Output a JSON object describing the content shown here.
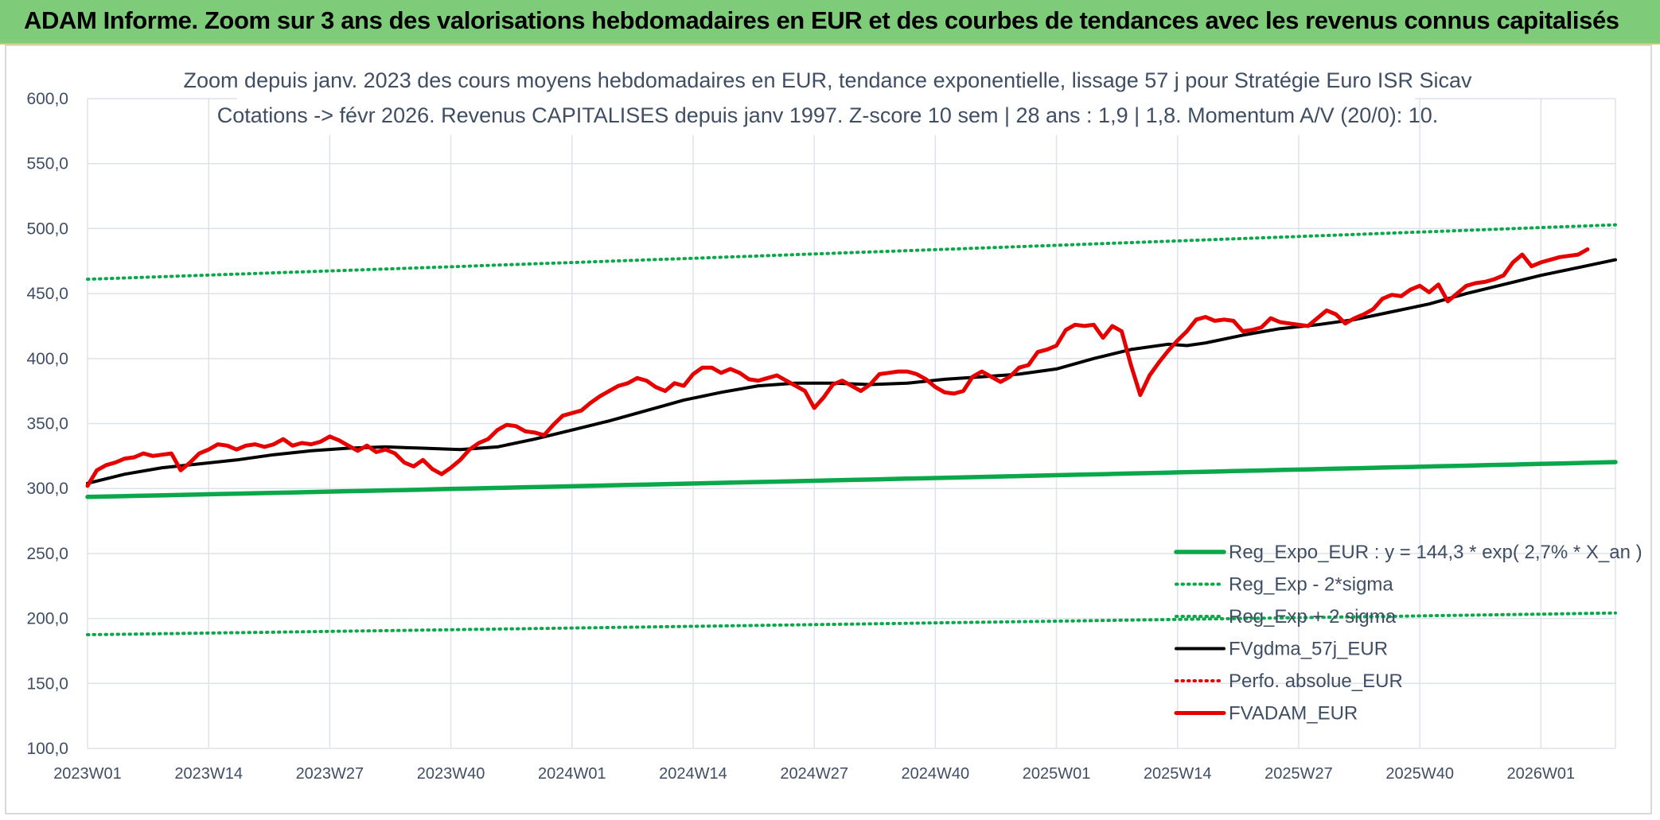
{
  "banner": {
    "title": "ADAM Informe. Zoom sur 3 ans des valorisations hebdomadaires en EUR et des courbes de tendances avec les revenus connus capitalisés"
  },
  "colors": {
    "banner_bg": "#7ecb7a",
    "regression": "#0aa84a",
    "fv_avg": "#000000",
    "fv_adam": "#e60000",
    "perf_abs": "#e60000",
    "grid": "#dde3ea",
    "text": "#404e64"
  },
  "chart_data": {
    "type": "line",
    "title": "Zoom depuis janv. 2023 des cours moyens hebdomadaires en EUR, tendance exponentielle, lissage 57 j pour Stratégie Euro ISR Sicav",
    "subtitle": "Cotations -> févr 2026. Revenus CAPITALISES depuis janv 1997. Z-score 10 sem | 28 ans : 1,9 | 1,8. Momentum A/V (20/0): 10.",
    "xlabel": "",
    "ylabel": "",
    "ylim": [
      100,
      600
    ],
    "y_ticks": [
      "100,0",
      "150,0",
      "200,0",
      "250,0",
      "300,0",
      "350,0",
      "400,0",
      "450,0",
      "500,0",
      "550,0",
      "600,0"
    ],
    "x_ticks": [
      "2023W01",
      "2023W14",
      "2023W27",
      "2023W40",
      "2024W01",
      "2024W14",
      "2024W27",
      "2024W40",
      "2025W01",
      "2025W14",
      "2025W27",
      "2025W40",
      "2026W01"
    ],
    "x_tick_week_index": [
      0,
      13,
      26,
      39,
      52,
      65,
      78,
      91,
      104,
      117,
      130,
      143,
      156
    ],
    "x_max_week_index": 164,
    "grid": true,
    "legend_position": "bottom-right",
    "series": [
      {
        "name": "Reg_Expo_EUR : y = 144,3 * exp( 2,7% *  X_an )",
        "style": "solid-thick",
        "color": "#0aa84a",
        "start_end": [
          293.5,
          320.3
        ]
      },
      {
        "name": "Reg_Exp - 2*sigma",
        "style": "dotted",
        "color": "#0aa84a",
        "start_end": [
          187.5,
          204.2
        ]
      },
      {
        "name": "Reg_Exp + 2 sigma",
        "style": "dotted",
        "color": "#0aa84a",
        "start_end": [
          461.0,
          502.9
        ]
      },
      {
        "name": "FVgdma_57j_EUR",
        "style": "solid",
        "color": "#000000",
        "points": [
          [
            0,
            304
          ],
          [
            4,
            311
          ],
          [
            8,
            316
          ],
          [
            12,
            319
          ],
          [
            16,
            322
          ],
          [
            20,
            326
          ],
          [
            24,
            329
          ],
          [
            28,
            331
          ],
          [
            32,
            332
          ],
          [
            36,
            331
          ],
          [
            40,
            330
          ],
          [
            44,
            332
          ],
          [
            48,
            338
          ],
          [
            52,
            345
          ],
          [
            56,
            352
          ],
          [
            60,
            360
          ],
          [
            64,
            368
          ],
          [
            68,
            374
          ],
          [
            72,
            379
          ],
          [
            76,
            381
          ],
          [
            80,
            381
          ],
          [
            84,
            380
          ],
          [
            88,
            381
          ],
          [
            92,
            384
          ],
          [
            96,
            386
          ],
          [
            100,
            388
          ],
          [
            104,
            392
          ],
          [
            108,
            400
          ],
          [
            112,
            407
          ],
          [
            116,
            411
          ],
          [
            118,
            410
          ],
          [
            120,
            412
          ],
          [
            124,
            418
          ],
          [
            128,
            423
          ],
          [
            132,
            426
          ],
          [
            136,
            430
          ],
          [
            140,
            436
          ],
          [
            144,
            442
          ],
          [
            148,
            450
          ],
          [
            152,
            457
          ],
          [
            156,
            464
          ],
          [
            160,
            470
          ],
          [
            164,
            476
          ]
        ]
      },
      {
        "name": "Perfo. absolue_EUR",
        "style": "dotted",
        "color": "#e60000",
        "points": []
      },
      {
        "name": "FVADAM_EUR",
        "style": "solid-thick",
        "color": "#e60000",
        "points": [
          [
            0,
            302
          ],
          [
            1,
            314
          ],
          [
            2,
            318
          ],
          [
            3,
            320
          ],
          [
            4,
            323
          ],
          [
            5,
            324
          ],
          [
            6,
            327
          ],
          [
            7,
            325
          ],
          [
            8,
            326
          ],
          [
            9,
            327
          ],
          [
            10,
            314
          ],
          [
            11,
            320
          ],
          [
            12,
            327
          ],
          [
            13,
            330
          ],
          [
            14,
            334
          ],
          [
            15,
            333
          ],
          [
            16,
            330
          ],
          [
            17,
            333
          ],
          [
            18,
            334
          ],
          [
            19,
            332
          ],
          [
            20,
            334
          ],
          [
            21,
            338
          ],
          [
            22,
            333
          ],
          [
            23,
            335
          ],
          [
            24,
            334
          ],
          [
            25,
            336
          ],
          [
            26,
            340
          ],
          [
            27,
            337
          ],
          [
            28,
            333
          ],
          [
            29,
            329
          ],
          [
            30,
            333
          ],
          [
            31,
            328
          ],
          [
            32,
            330
          ],
          [
            33,
            327
          ],
          [
            34,
            320
          ],
          [
            35,
            317
          ],
          [
            36,
            322
          ],
          [
            37,
            315
          ],
          [
            38,
            311
          ],
          [
            39,
            316
          ],
          [
            40,
            322
          ],
          [
            41,
            330
          ],
          [
            42,
            335
          ],
          [
            43,
            338
          ],
          [
            44,
            345
          ],
          [
            45,
            349
          ],
          [
            46,
            348
          ],
          [
            47,
            344
          ],
          [
            48,
            343
          ],
          [
            49,
            341
          ],
          [
            50,
            349
          ],
          [
            51,
            356
          ],
          [
            52,
            358
          ],
          [
            53,
            360
          ],
          [
            54,
            366
          ],
          [
            55,
            371
          ],
          [
            56,
            375
          ],
          [
            57,
            379
          ],
          [
            58,
            381
          ],
          [
            59,
            385
          ],
          [
            60,
            383
          ],
          [
            61,
            378
          ],
          [
            62,
            375
          ],
          [
            63,
            381
          ],
          [
            64,
            379
          ],
          [
            65,
            388
          ],
          [
            66,
            393
          ],
          [
            67,
            393
          ],
          [
            68,
            389
          ],
          [
            69,
            392
          ],
          [
            70,
            389
          ],
          [
            71,
            384
          ],
          [
            72,
            383
          ],
          [
            73,
            385
          ],
          [
            74,
            387
          ],
          [
            75,
            383
          ],
          [
            76,
            379
          ],
          [
            77,
            375
          ],
          [
            78,
            362
          ],
          [
            79,
            370
          ],
          [
            80,
            380
          ],
          [
            81,
            383
          ],
          [
            82,
            379
          ],
          [
            83,
            375
          ],
          [
            84,
            380
          ],
          [
            85,
            388
          ],
          [
            86,
            389
          ],
          [
            87,
            390
          ],
          [
            88,
            390
          ],
          [
            89,
            388
          ],
          [
            90,
            384
          ],
          [
            91,
            378
          ],
          [
            92,
            374
          ],
          [
            93,
            373
          ],
          [
            94,
            375
          ],
          [
            95,
            386
          ],
          [
            96,
            390
          ],
          [
            97,
            386
          ],
          [
            98,
            382
          ],
          [
            99,
            386
          ],
          [
            100,
            393
          ],
          [
            101,
            395
          ],
          [
            102,
            405
          ],
          [
            103,
            407
          ],
          [
            104,
            410
          ],
          [
            105,
            422
          ],
          [
            106,
            426
          ],
          [
            107,
            425
          ],
          [
            108,
            426
          ],
          [
            109,
            416
          ],
          [
            110,
            425
          ],
          [
            111,
            421
          ],
          [
            112,
            395
          ],
          [
            113,
            372
          ],
          [
            114,
            387
          ],
          [
            115,
            397
          ],
          [
            116,
            406
          ],
          [
            117,
            414
          ],
          [
            118,
            421
          ],
          [
            119,
            430
          ],
          [
            120,
            432
          ],
          [
            121,
            429
          ],
          [
            122,
            430
          ],
          [
            123,
            429
          ],
          [
            124,
            421
          ],
          [
            125,
            422
          ],
          [
            126,
            424
          ],
          [
            127,
            431
          ],
          [
            128,
            428
          ],
          [
            129,
            427
          ],
          [
            130,
            426
          ],
          [
            131,
            425
          ],
          [
            132,
            431
          ],
          [
            133,
            437
          ],
          [
            134,
            434
          ],
          [
            135,
            427
          ],
          [
            136,
            431
          ],
          [
            137,
            434
          ],
          [
            138,
            438
          ],
          [
            139,
            446
          ],
          [
            140,
            449
          ],
          [
            141,
            448
          ],
          [
            142,
            453
          ],
          [
            143,
            456
          ],
          [
            144,
            451
          ],
          [
            145,
            457
          ],
          [
            146,
            444
          ],
          [
            147,
            450
          ],
          [
            148,
            456
          ],
          [
            149,
            458
          ],
          [
            150,
            459
          ],
          [
            151,
            461
          ],
          [
            152,
            464
          ],
          [
            153,
            474
          ],
          [
            154,
            480
          ],
          [
            155,
            471
          ],
          [
            156,
            474
          ],
          [
            157,
            476
          ],
          [
            158,
            478
          ],
          [
            159,
            479
          ],
          [
            160,
            480
          ],
          [
            161,
            484
          ]
        ]
      }
    ]
  }
}
